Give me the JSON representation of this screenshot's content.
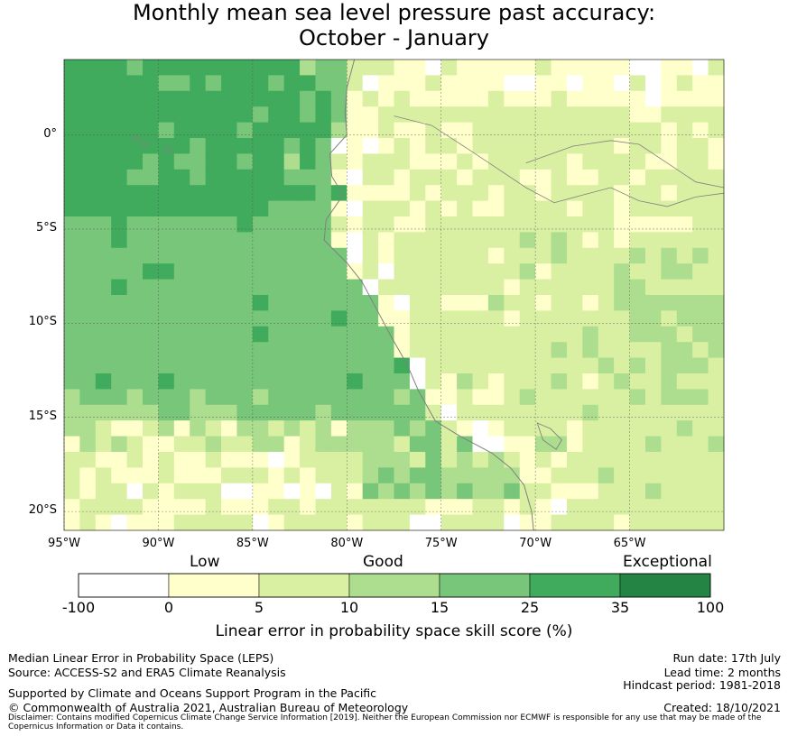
{
  "title": {
    "line1": "Monthly mean sea level pressure past accuracy:",
    "line2": "October - January"
  },
  "colors": {
    "c0": "#ffffff",
    "c1": "#ffffcc",
    "c2": "#d9f0a3",
    "c3": "#addd8e",
    "c4": "#78c679",
    "c5": "#41ab5d",
    "c6": "#238443",
    "coast": "#808080",
    "grid": "#555555"
  },
  "map": {
    "lon_range": [
      -95,
      -60
    ],
    "lat_range": [
      -21,
      4
    ],
    "lat_ticks": [
      {
        "value": 0,
        "label": "0°"
      },
      {
        "value": -5,
        "label": "5°S"
      },
      {
        "value": -10,
        "label": "10°S"
      },
      {
        "value": -15,
        "label": "15°S"
      },
      {
        "value": -20,
        "label": "20°S"
      }
    ],
    "lon_ticks": [
      {
        "value": -95,
        "label": "95°W"
      },
      {
        "value": -90,
        "label": "90°W"
      },
      {
        "value": -85,
        "label": "85°W"
      },
      {
        "value": -80,
        "label": "80°W"
      },
      {
        "value": -75,
        "label": "75°W"
      },
      {
        "value": -70,
        "label": "70°W"
      },
      {
        "value": -65,
        "label": "65°W"
      }
    ]
  },
  "colorbar": {
    "categories": [
      "Low",
      "Good",
      "Exceptional"
    ],
    "ticks": [
      "-100",
      "0",
      "5",
      "10",
      "15",
      "25",
      "35",
      "100"
    ],
    "title": "Linear error in probability space skill score (%)"
  },
  "footer": {
    "left1": "Median Linear Error in Probability Space (LEPS)",
    "left2": "Source: ACCESS-S2 and ERA5 Climate Reanalysis",
    "left3": "Supported by Climate and Oceans Support Program in the Pacific",
    "left4": "© Commonwealth of Australia 2021, Australian Bureau of Meteorology",
    "right1": "Run date: 17th July",
    "right2": "Lead time: 2 months",
    "right3": "Hindcast period: 1981-2018",
    "right4": "Created: 18/10/2021",
    "disclaimer": "Disclaimer: Contains modified Copernicus Climate Change Service Information [2019]. Neither the European Commission nor ECMWF is responsible for any use that may be made of the Copernicus Information or Data it contains."
  }
}
